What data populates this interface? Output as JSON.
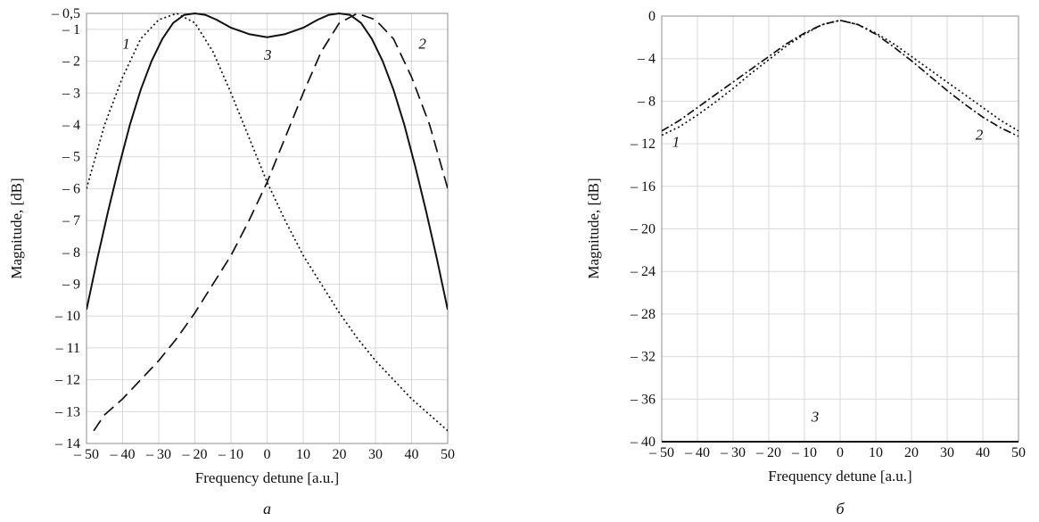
{
  "chart_data": [
    {
      "type": "line",
      "panel_label": "а",
      "xlabel": "Frequency detune [a.u.]",
      "ylabel": "Magnitude, [dB]",
      "xlim": [
        -50,
        50
      ],
      "ylim": [
        -14,
        -0.5
      ],
      "grid": true,
      "x_ticks": [
        -50,
        -40,
        -30,
        -20,
        -10,
        0,
        10,
        20,
        30,
        40,
        50
      ],
      "x_tick_labels": [
        "– 50",
        "– 40",
        "– 30",
        "– 20",
        "– 10",
        "0",
        "10",
        "20",
        "30",
        "40",
        "50"
      ],
      "y_ticks": [
        -0.5,
        -1,
        -2,
        -3,
        -4,
        -5,
        -6,
        -7,
        -8,
        -9,
        -10,
        -11,
        -12,
        -13,
        -14
      ],
      "y_tick_labels": [
        "– 0,5",
        "– 1",
        "– 2",
        "– 3",
        "– 4",
        "– 5",
        "– 6",
        "– 7",
        "– 8",
        "– 9",
        "– 10",
        "– 11",
        "– 12",
        "– 13",
        "– 14"
      ],
      "series": [
        {
          "label": "1",
          "style": "dotted",
          "color": "#111111",
          "x": [
            -50,
            -45,
            -40,
            -35,
            -30,
            -25,
            -20,
            -15,
            -10,
            -5,
            0,
            5,
            10,
            15,
            20,
            25,
            30,
            35,
            40,
            45,
            50
          ],
          "y": [
            -6.0,
            -4.0,
            -2.5,
            -1.3,
            -0.7,
            -0.5,
            -0.8,
            -1.7,
            -3.0,
            -4.4,
            -5.8,
            -7.0,
            -8.1,
            -9.0,
            -9.9,
            -10.7,
            -11.4,
            -12.0,
            -12.6,
            -13.1,
            -13.6
          ]
        },
        {
          "label": "2",
          "style": "dashed",
          "color": "#111111",
          "x": [
            -48,
            -45,
            -40,
            -35,
            -30,
            -25,
            -20,
            -15,
            -10,
            -5,
            0,
            5,
            10,
            15,
            20,
            25,
            30,
            35,
            40,
            45,
            50
          ],
          "y": [
            -13.6,
            -13.1,
            -12.6,
            -12.0,
            -11.4,
            -10.7,
            -9.9,
            -9.0,
            -8.1,
            -7.0,
            -5.8,
            -4.4,
            -3.0,
            -1.7,
            -0.8,
            -0.5,
            -0.7,
            -1.3,
            -2.5,
            -4.0,
            -6.0
          ]
        },
        {
          "label": "3",
          "style": "solid",
          "color": "#111111",
          "x": [
            -50,
            -47,
            -44,
            -41,
            -38,
            -35,
            -32,
            -29,
            -26,
            -23,
            -20,
            -17,
            -14,
            -10,
            -5,
            0,
            5,
            10,
            14,
            17,
            20,
            23,
            26,
            29,
            32,
            35,
            38,
            41,
            44,
            47,
            50
          ],
          "y": [
            -9.8,
            -8.2,
            -6.7,
            -5.3,
            -4.0,
            -2.9,
            -2.0,
            -1.3,
            -0.8,
            -0.55,
            -0.5,
            -0.55,
            -0.7,
            -0.95,
            -1.15,
            -1.25,
            -1.15,
            -0.95,
            -0.7,
            -0.55,
            -0.5,
            -0.55,
            -0.8,
            -1.3,
            -2.0,
            -2.9,
            -4.0,
            -5.3,
            -6.7,
            -8.2,
            -9.8
          ]
        }
      ]
    },
    {
      "type": "line",
      "panel_label": "б",
      "xlabel": "Frequency detune [a.u.]",
      "ylabel": "Magnitude, [dB]",
      "xlim": [
        -50,
        50
      ],
      "ylim": [
        -40,
        0
      ],
      "grid": true,
      "x_ticks": [
        -50,
        -40,
        -30,
        -20,
        -10,
        0,
        10,
        20,
        30,
        40,
        50
      ],
      "x_tick_labels": [
        "– 50",
        "– 40",
        "– 30",
        "– 20",
        "– 10",
        "0",
        "10",
        "20",
        "30",
        "40",
        "50"
      ],
      "y_ticks": [
        0,
        -4,
        -8,
        -12,
        -16,
        -20,
        -24,
        -28,
        -32,
        -36,
        -40
      ],
      "y_tick_labels": [
        "0",
        "– 4",
        "– 8",
        "– 12",
        "– 16",
        "– 20",
        "– 24",
        "– 28",
        "– 32",
        "– 36",
        "– 40"
      ],
      "series": [
        {
          "label": "1",
          "style": "dashdot",
          "color": "#111111",
          "x": [
            -50,
            -45,
            -40,
            -35,
            -30,
            -25,
            -20,
            -15,
            -10,
            -5,
            0,
            5,
            10,
            15,
            20,
            25,
            30,
            35,
            40,
            45,
            50
          ],
          "y": [
            -10.8,
            -9.8,
            -8.6,
            -7.4,
            -6.2,
            -5.0,
            -3.8,
            -2.6,
            -1.6,
            -0.8,
            -0.4,
            -0.8,
            -1.7,
            -2.9,
            -4.2,
            -5.6,
            -7.0,
            -8.3,
            -9.5,
            -10.5,
            -11.3
          ]
        },
        {
          "label": "2",
          "style": "dotted",
          "color": "#111111",
          "x": [
            -50,
            -45,
            -40,
            -35,
            -30,
            -25,
            -20,
            -15,
            -10,
            -5,
            0,
            5,
            10,
            15,
            20,
            25,
            30,
            35,
            40,
            45,
            50
          ],
          "y": [
            -11.2,
            -10.4,
            -9.3,
            -8.1,
            -6.8,
            -5.4,
            -4.1,
            -2.8,
            -1.7,
            -0.8,
            -0.4,
            -0.8,
            -1.6,
            -2.6,
            -3.8,
            -5.0,
            -6.2,
            -7.4,
            -8.6,
            -9.8,
            -10.8
          ]
        },
        {
          "label": "3",
          "style": "solid",
          "color": "#111111",
          "x": [
            -50,
            -25,
            0,
            25,
            50
          ],
          "y": [
            -40,
            -40,
            -40,
            -40,
            -40
          ]
        }
      ]
    }
  ]
}
